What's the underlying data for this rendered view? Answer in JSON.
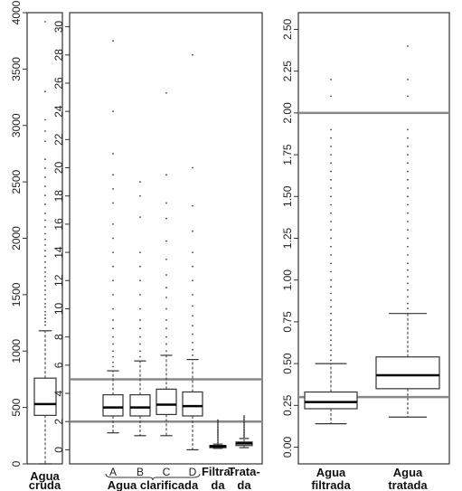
{
  "chart_data": [
    {
      "type": "box",
      "panel": "raw",
      "ylim": [
        0,
        4000
      ],
      "yticks": [
        0,
        500,
        1000,
        1500,
        2000,
        2500,
        3000,
        3500,
        4000
      ],
      "ytick_labels": [
        "0",
        "500",
        "1000",
        "1500",
        "2000",
        "2500",
        "3000",
        "3500",
        "4000"
      ],
      "xlabel": [
        "Agua",
        "cruda"
      ],
      "boxes": [
        {
          "min": 0,
          "q1": 430,
          "median": 530,
          "q3": 760,
          "whisker_high": 1180,
          "outliers": [
            1230,
            1260,
            1290,
            1320,
            1350,
            1390,
            1420,
            1460,
            1500,
            1540,
            1580,
            1620,
            1660,
            1700,
            1740,
            1790,
            1840,
            1890,
            1940,
            1990,
            2040,
            2100,
            2160,
            2220,
            2300,
            2380,
            2460,
            2540,
            2620,
            2700,
            2860,
            2950,
            3050,
            3300,
            3920
          ]
        }
      ]
    },
    {
      "type": "box",
      "panel": "clarified",
      "ylim": [
        -1,
        31
      ],
      "yticks": [
        0,
        2,
        4,
        6,
        8,
        10,
        12,
        14,
        16,
        18,
        20,
        22,
        24,
        26,
        28,
        30
      ],
      "ytick_labels": [
        "0",
        "2",
        "4",
        "6",
        "8",
        "10",
        "12",
        "14",
        "16",
        "18",
        "20",
        "22",
        "24",
        "26",
        "28",
        "30"
      ],
      "categories": [
        "A",
        "B",
        "C",
        "D",
        "Filtra-",
        "Trata-"
      ],
      "category_sublabels": [
        "",
        "",
        "",
        "",
        "da",
        "da"
      ],
      "group_label": "Agua clarificada",
      "hlines": [
        5,
        2
      ],
      "boxes": [
        {
          "min": 1.2,
          "q1": 2.4,
          "median": 3.0,
          "q3": 3.9,
          "whisker_high": 5.6,
          "outliers": [
            5.9,
            6.2,
            6.6,
            7.0,
            7.5,
            8.0,
            8.6,
            9.2,
            10.0,
            11.0,
            12.0,
            13.0,
            14.0,
            15.0,
            16.0,
            17.5,
            18.5,
            19.5,
            21.0,
            24.0,
            29.0
          ]
        },
        {
          "min": 1.0,
          "q1": 2.4,
          "median": 3.0,
          "q3": 3.9,
          "whisker_high": 6.3,
          "outliers": [
            6.6,
            7.0,
            7.5,
            8.0,
            8.6,
            9.2,
            10.0,
            11.0,
            12.0,
            13.0,
            14.0,
            16.5,
            18.0,
            19.0
          ]
        },
        {
          "min": 1.0,
          "q1": 2.5,
          "median": 3.2,
          "q3": 4.3,
          "whisker_high": 6.7,
          "outliers": [
            7.0,
            7.5,
            8.0,
            8.6,
            9.2,
            10.0,
            10.8,
            11.5,
            12.4,
            13.5,
            14.8,
            16.4,
            17.5,
            19.5,
            25.3
          ]
        },
        {
          "min": 0.0,
          "q1": 2.4,
          "median": 3.1,
          "q3": 4.1,
          "whisker_high": 6.4,
          "outliers": [
            6.7,
            7.1,
            7.6,
            8.2,
            8.8,
            9.5,
            10.2,
            11.0,
            12.0,
            13.0,
            14.0,
            15.5,
            17.3,
            20.0,
            28.0
          ]
        },
        {
          "min": 0.1,
          "q1": 0.15,
          "median": 0.25,
          "q3": 0.3,
          "whisker_high": 0.4,
          "outliers": [
            0.5,
            0.6,
            0.7,
            0.8,
            0.9,
            1.0,
            1.1,
            1.2,
            1.3,
            1.4,
            1.5,
            1.6,
            1.7,
            1.8,
            1.9,
            2.0,
            2.1
          ]
        },
        {
          "min": 0.15,
          "q1": 0.3,
          "median": 0.45,
          "q3": 0.55,
          "whisker_high": 0.8,
          "outliers": [
            0.9,
            1.0,
            1.1,
            1.2,
            1.3,
            1.4,
            1.5,
            1.6,
            1.7,
            1.8,
            1.9,
            2.0,
            2.1,
            2.2,
            2.3,
            2.4
          ]
        }
      ]
    },
    {
      "type": "box",
      "panel": "treated",
      "ylim": [
        -0.1,
        2.6
      ],
      "yticks": [
        0.0,
        0.25,
        0.5,
        0.75,
        1.0,
        1.25,
        1.5,
        1.75,
        2.0,
        2.25,
        2.5
      ],
      "ytick_labels": [
        "0.00",
        "0.25",
        "0.50",
        "0.75",
        "1.00",
        "1.25",
        "1.50",
        "1.75",
        "2.00",
        "2.25",
        "2.50"
      ],
      "categories": [
        "Agua",
        "Agua"
      ],
      "category_sublabels": [
        "filtrada",
        "tratada"
      ],
      "hlines": [
        2.0,
        0.3
      ],
      "boxes": [
        {
          "min": 0.14,
          "q1": 0.23,
          "median": 0.27,
          "q3": 0.33,
          "whisker_high": 0.5,
          "outliers": [
            0.52,
            0.55,
            0.58,
            0.61,
            0.64,
            0.67,
            0.7,
            0.73,
            0.76,
            0.8,
            0.84,
            0.88,
            0.92,
            0.96,
            1.0,
            1.05,
            1.1,
            1.15,
            1.2,
            1.25,
            1.3,
            1.35,
            1.4,
            1.45,
            1.5,
            1.55,
            1.6,
            1.65,
            1.7,
            1.75,
            1.8,
            1.85,
            1.9,
            2.1,
            2.2
          ]
        },
        {
          "min": 0.18,
          "q1": 0.35,
          "median": 0.43,
          "q3": 0.54,
          "whisker_high": 0.8,
          "outliers": [
            0.83,
            0.86,
            0.9,
            0.94,
            0.98,
            1.02,
            1.06,
            1.1,
            1.15,
            1.2,
            1.25,
            1.3,
            1.35,
            1.4,
            1.45,
            1.5,
            1.55,
            1.6,
            1.65,
            1.7,
            1.75,
            1.8,
            1.85,
            1.9,
            2.1,
            2.2,
            2.4
          ]
        }
      ]
    }
  ]
}
